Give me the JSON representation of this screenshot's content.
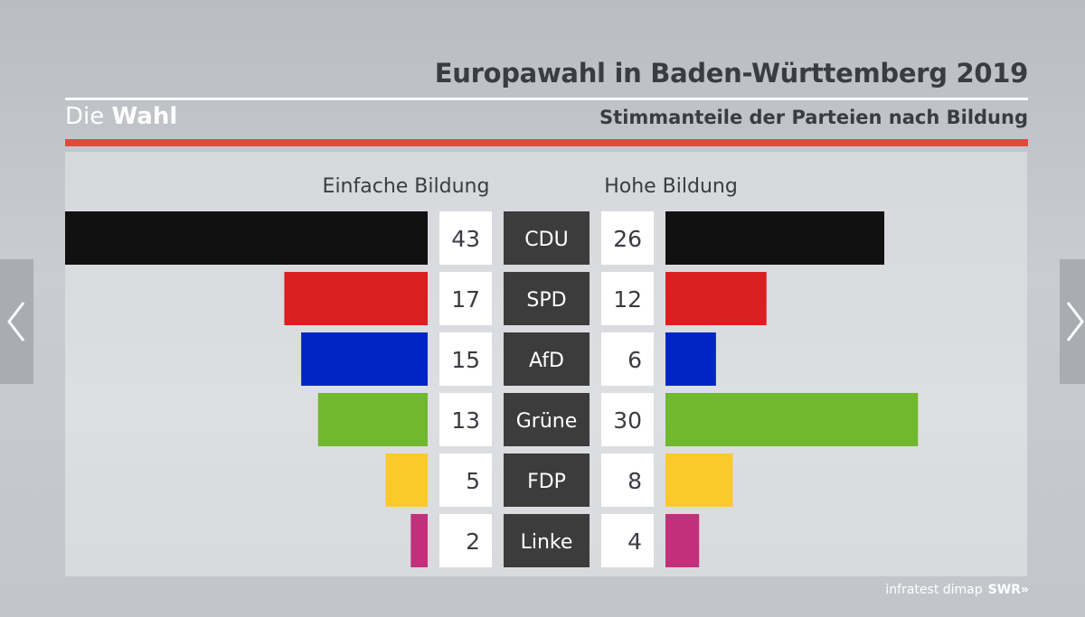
{
  "header": {
    "title": "Europawahl in Baden-Württemberg 2019",
    "brand_prefix": "Die",
    "brand_bold": "Wahl",
    "subtitle": "Stimmanteile der Parteien nach Bildung"
  },
  "footer": {
    "source": "infratest dimap",
    "broadcaster": "SWR",
    "broadcaster_mark": "»"
  },
  "chart_data": {
    "type": "bar",
    "title": "Stimmanteile der Parteien nach Bildung",
    "series": [
      {
        "name": "Einfache Bildung",
        "values": [
          43,
          17,
          15,
          13,
          5,
          2
        ]
      },
      {
        "name": "Hohe Bildung",
        "values": [
          26,
          12,
          6,
          30,
          8,
          4
        ]
      }
    ],
    "categories": [
      "CDU",
      "SPD",
      "AfD",
      "Grüne",
      "FDP",
      "Linke"
    ],
    "colors": [
      "#111111",
      "#d91f1f",
      "#0025c4",
      "#70b82d",
      "#fcc92d",
      "#c2307c"
    ],
    "unit": "percent"
  }
}
